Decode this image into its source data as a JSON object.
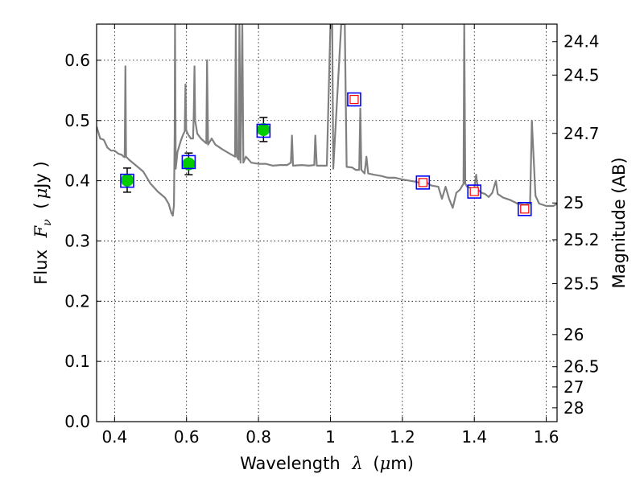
{
  "chart_data": {
    "type": "scatter",
    "xlabel": "Wavelength",
    "xlabel_symbol": "λ",
    "xlabel_unit_open": "(",
    "xlabel_unit_mu": "μ",
    "xlabel_unit_rest": "m)",
    "ylabel": "Flux",
    "ylabel_symbol": "F",
    "ylabel_subscript": "ν",
    "ylabel_unit_open": "(",
    "ylabel_unit_mu": "μ",
    "ylabel_unit_rest": "Jy )",
    "y2label": "Magnitude (AB)",
    "xlim": [
      0.35,
      1.63
    ],
    "ylim": [
      0.0,
      0.66
    ],
    "grid": true,
    "x_ticks": [
      0.4,
      0.6,
      0.8,
      1.0,
      1.2,
      1.4,
      1.6
    ],
    "x_tick_labels": [
      "0.4",
      "0.6",
      "0.8",
      "1",
      "1.2",
      "1.4",
      "1.6"
    ],
    "y_ticks": [
      0.0,
      0.1,
      0.2,
      0.3,
      0.4,
      0.5,
      0.6
    ],
    "y_tick_labels": [
      "0.0",
      "0.1",
      "0.2",
      "0.3",
      "0.4",
      "0.5",
      "0.6"
    ],
    "mag_ticks": [
      24.4,
      24.5,
      24.7,
      25,
      25.2,
      25.5,
      26,
      26.5,
      27,
      28
    ],
    "mag_tick_labels": [
      "24.4",
      "24.5",
      "24.7",
      "25",
      "25.2",
      "25.5",
      "26",
      "26.5",
      "27",
      "28"
    ],
    "colors": {
      "model": "#808080",
      "observed": "#00cc00",
      "model_box": "#0000ff",
      "predicted_box": "#ff0000",
      "errorbar": "#000000"
    },
    "observed_points": [
      {
        "x": 0.435,
        "y": 0.401,
        "yerr": 0.02
      },
      {
        "x": 0.606,
        "y": 0.428,
        "yerr": 0.018
      },
      {
        "x": 0.814,
        "y": 0.485,
        "yerr": 0.02
      }
    ],
    "model_photometry": [
      {
        "x": 0.435,
        "y": 0.4
      },
      {
        "x": 0.606,
        "y": 0.431
      },
      {
        "x": 0.814,
        "y": 0.483
      }
    ],
    "predicted_photometry": [
      {
        "x": 1.066,
        "y": 0.535
      },
      {
        "x": 1.257,
        "y": 0.397
      },
      {
        "x": 1.4,
        "y": 0.382
      },
      {
        "x": 1.54,
        "y": 0.353
      }
    ],
    "model_spectrum": [
      [
        0.35,
        0.49
      ],
      [
        0.36,
        0.47
      ],
      [
        0.37,
        0.468
      ],
      [
        0.38,
        0.455
      ],
      [
        0.39,
        0.45
      ],
      [
        0.4,
        0.45
      ],
      [
        0.41,
        0.445
      ],
      [
        0.42,
        0.443
      ],
      [
        0.425,
        0.44
      ],
      [
        0.428,
        0.439
      ],
      [
        0.43,
        0.59
      ],
      [
        0.432,
        0.44
      ],
      [
        0.44,
        0.435
      ],
      [
        0.46,
        0.425
      ],
      [
        0.48,
        0.415
      ],
      [
        0.5,
        0.395
      ],
      [
        0.52,
        0.382
      ],
      [
        0.54,
        0.372
      ],
      [
        0.55,
        0.362
      ],
      [
        0.558,
        0.346
      ],
      [
        0.562,
        0.342
      ],
      [
        0.565,
        0.36
      ],
      [
        0.567,
        0.48
      ],
      [
        0.568,
        0.66
      ],
      [
        0.57,
        0.42
      ],
      [
        0.575,
        0.448
      ],
      [
        0.585,
        0.468
      ],
      [
        0.59,
        0.476
      ],
      [
        0.595,
        0.482
      ],
      [
        0.597,
        0.56
      ],
      [
        0.599,
        0.484
      ],
      [
        0.605,
        0.476
      ],
      [
        0.612,
        0.47
      ],
      [
        0.618,
        0.47
      ],
      [
        0.62,
        0.51
      ],
      [
        0.622,
        0.59
      ],
      [
        0.624,
        0.5
      ],
      [
        0.63,
        0.478
      ],
      [
        0.64,
        0.47
      ],
      [
        0.655,
        0.462
      ],
      [
        0.657,
        0.6
      ],
      [
        0.66,
        0.46
      ],
      [
        0.67,
        0.47
      ],
      [
        0.68,
        0.46
      ],
      [
        0.7,
        0.452
      ],
      [
        0.72,
        0.445
      ],
      [
        0.735,
        0.44
      ],
      [
        0.737,
        0.66
      ],
      [
        0.74,
        0.44
      ],
      [
        0.745,
        0.435
      ],
      [
        0.747,
        0.66
      ],
      [
        0.75,
        0.43
      ],
      [
        0.755,
        0.66
      ],
      [
        0.758,
        0.43
      ],
      [
        0.765,
        0.44
      ],
      [
        0.78,
        0.43
      ],
      [
        0.8,
        0.428
      ],
      [
        0.82,
        0.428
      ],
      [
        0.84,
        0.425
      ],
      [
        0.86,
        0.426
      ],
      [
        0.88,
        0.426
      ],
      [
        0.89,
        0.43
      ],
      [
        0.893,
        0.475
      ],
      [
        0.896,
        0.425
      ],
      [
        0.92,
        0.426
      ],
      [
        0.94,
        0.425
      ],
      [
        0.955,
        0.426
      ],
      [
        0.958,
        0.475
      ],
      [
        0.962,
        0.425
      ],
      [
        0.975,
        0.425
      ],
      [
        0.99,
        0.425
      ],
      [
        1.0,
        0.66
      ],
      [
        1.005,
        0.66
      ],
      [
        1.008,
        0.42
      ],
      [
        1.03,
        0.66
      ],
      [
        1.04,
        0.66
      ],
      [
        1.045,
        0.423
      ],
      [
        1.06,
        0.422
      ],
      [
        1.07,
        0.418
      ],
      [
        1.08,
        0.418
      ],
      [
        1.083,
        0.52
      ],
      [
        1.086,
        0.418
      ],
      [
        1.095,
        0.412
      ],
      [
        1.1,
        0.44
      ],
      [
        1.105,
        0.412
      ],
      [
        1.12,
        0.41
      ],
      [
        1.14,
        0.408
      ],
      [
        1.16,
        0.405
      ],
      [
        1.18,
        0.405
      ],
      [
        1.2,
        0.402
      ],
      [
        1.22,
        0.4
      ],
      [
        1.24,
        0.398
      ],
      [
        1.26,
        0.393
      ],
      [
        1.265,
        0.398
      ],
      [
        1.28,
        0.392
      ],
      [
        1.3,
        0.39
      ],
      [
        1.31,
        0.37
      ],
      [
        1.32,
        0.39
      ],
      [
        1.33,
        0.37
      ],
      [
        1.34,
        0.355
      ],
      [
        1.35,
        0.38
      ],
      [
        1.36,
        0.385
      ],
      [
        1.37,
        0.395
      ],
      [
        1.372,
        0.66
      ],
      [
        1.375,
        0.395
      ],
      [
        1.38,
        0.39
      ],
      [
        1.39,
        0.388
      ],
      [
        1.4,
        0.388
      ],
      [
        1.405,
        0.41
      ],
      [
        1.41,
        0.385
      ],
      [
        1.42,
        0.38
      ],
      [
        1.43,
        0.378
      ],
      [
        1.44,
        0.373
      ],
      [
        1.45,
        0.38
      ],
      [
        1.46,
        0.4
      ],
      [
        1.465,
        0.378
      ],
      [
        1.48,
        0.372
      ],
      [
        1.5,
        0.368
      ],
      [
        1.52,
        0.362
      ],
      [
        1.54,
        0.36
      ],
      [
        1.555,
        0.362
      ],
      [
        1.56,
        0.5
      ],
      [
        1.563,
        0.46
      ],
      [
        1.57,
        0.375
      ],
      [
        1.58,
        0.362
      ],
      [
        1.6,
        0.358
      ],
      [
        1.62,
        0.358
      ],
      [
        1.63,
        0.362
      ]
    ]
  }
}
